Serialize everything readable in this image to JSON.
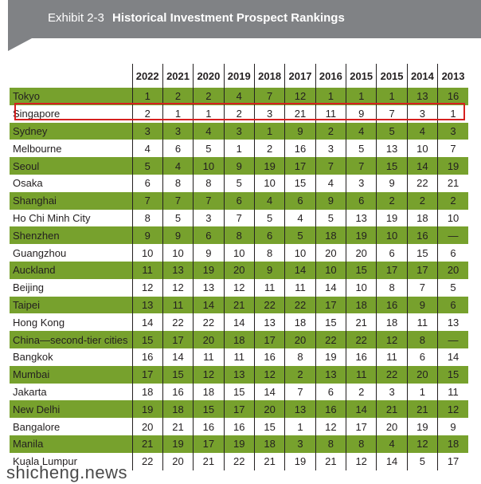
{
  "header": {
    "exhibit": "Exhibit 2-3",
    "title": "Historical Investment Prospect Rankings"
  },
  "table": {
    "years": [
      "2022",
      "2021",
      "2020",
      "2019",
      "2018",
      "2017",
      "2016",
      "2015",
      "2015",
      "2014",
      "2013"
    ],
    "rows": [
      {
        "city": "Tokyo",
        "ranks": [
          "1",
          "2",
          "2",
          "4",
          "7",
          "12",
          "1",
          "1",
          "1",
          "13",
          "16"
        ]
      },
      {
        "city": "Singapore",
        "ranks": [
          "2",
          "1",
          "1",
          "2",
          "3",
          "21",
          "11",
          "9",
          "7",
          "3",
          "1"
        ]
      },
      {
        "city": "Sydney",
        "ranks": [
          "3",
          "3",
          "4",
          "3",
          "1",
          "9",
          "2",
          "4",
          "5",
          "4",
          "3"
        ]
      },
      {
        "city": "Melbourne",
        "ranks": [
          "4",
          "6",
          "5",
          "1",
          "2",
          "16",
          "3",
          "5",
          "13",
          "10",
          "7"
        ]
      },
      {
        "city": "Seoul",
        "ranks": [
          "5",
          "4",
          "10",
          "9",
          "19",
          "17",
          "7",
          "7",
          "15",
          "14",
          "19"
        ]
      },
      {
        "city": "Osaka",
        "ranks": [
          "6",
          "8",
          "8",
          "5",
          "10",
          "15",
          "4",
          "3",
          "9",
          "22",
          "21"
        ]
      },
      {
        "city": "Shanghai",
        "ranks": [
          "7",
          "7",
          "7",
          "6",
          "4",
          "6",
          "9",
          "6",
          "2",
          "2",
          "2"
        ]
      },
      {
        "city": "Ho Chi Minh City",
        "ranks": [
          "8",
          "5",
          "3",
          "7",
          "5",
          "4",
          "5",
          "13",
          "19",
          "18",
          "10"
        ]
      },
      {
        "city": "Shenzhen",
        "ranks": [
          "9",
          "9",
          "6",
          "8",
          "6",
          "5",
          "18",
          "19",
          "10",
          "16",
          "—"
        ]
      },
      {
        "city": "Guangzhou",
        "ranks": [
          "10",
          "10",
          "9",
          "10",
          "8",
          "10",
          "20",
          "20",
          "6",
          "15",
          "6"
        ]
      },
      {
        "city": "Auckland",
        "ranks": [
          "11",
          "13",
          "19",
          "20",
          "9",
          "14",
          "10",
          "15",
          "17",
          "17",
          "20"
        ]
      },
      {
        "city": "Beijing",
        "ranks": [
          "12",
          "12",
          "13",
          "12",
          "11",
          "11",
          "14",
          "10",
          "8",
          "7",
          "5"
        ]
      },
      {
        "city": "Taipei",
        "ranks": [
          "13",
          "11",
          "14",
          "21",
          "22",
          "22",
          "17",
          "18",
          "16",
          "9",
          "6"
        ]
      },
      {
        "city": "Hong Kong",
        "ranks": [
          "14",
          "22",
          "22",
          "14",
          "13",
          "18",
          "15",
          "21",
          "18",
          "11",
          "13"
        ]
      },
      {
        "city": "China—second-tier cities",
        "ranks": [
          "15",
          "17",
          "20",
          "18",
          "17",
          "20",
          "22",
          "22",
          "12",
          "8",
          "—"
        ]
      },
      {
        "city": "Bangkok",
        "ranks": [
          "16",
          "14",
          "11",
          "11",
          "16",
          "8",
          "19",
          "16",
          "11",
          "6",
          "14"
        ]
      },
      {
        "city": "Mumbai",
        "ranks": [
          "17",
          "15",
          "12",
          "13",
          "12",
          "2",
          "13",
          "11",
          "22",
          "20",
          "15"
        ]
      },
      {
        "city": "Jakarta",
        "ranks": [
          "18",
          "16",
          "18",
          "15",
          "14",
          "7",
          "6",
          "2",
          "3",
          "1",
          "11"
        ]
      },
      {
        "city": "New Delhi",
        "ranks": [
          "19",
          "18",
          "15",
          "17",
          "20",
          "13",
          "16",
          "14",
          "21",
          "21",
          "12"
        ]
      },
      {
        "city": "Bangalore",
        "ranks": [
          "20",
          "21",
          "16",
          "16",
          "15",
          "1",
          "12",
          "17",
          "20",
          "19",
          "9"
        ]
      },
      {
        "city": "Manila",
        "ranks": [
          "21",
          "19",
          "17",
          "19",
          "18",
          "3",
          "8",
          "8",
          "4",
          "12",
          "18"
        ]
      },
      {
        "city": "Kuala Lumpur",
        "ranks": [
          "22",
          "20",
          "21",
          "22",
          "21",
          "19",
          "21",
          "12",
          "14",
          "5",
          "17"
        ]
      }
    ]
  },
  "watermark": "shicheng.news",
  "colors": {
    "banner": "#808285",
    "stripe": "#77a12d",
    "highlight": "#d6201f"
  }
}
